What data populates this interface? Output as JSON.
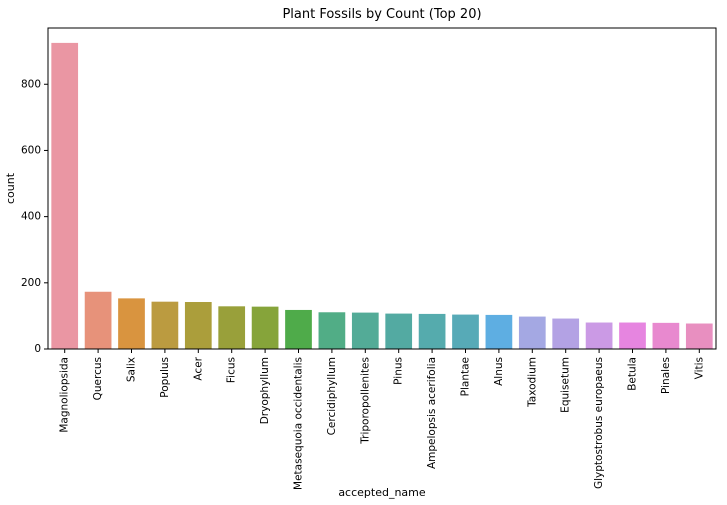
{
  "chart_data": {
    "type": "bar",
    "title": "Plant Fossils by Count (Top 20)",
    "xlabel": "accepted_name",
    "ylabel": "count",
    "ylim": [
      0,
      970
    ],
    "yticks": [
      0,
      200,
      400,
      600,
      800
    ],
    "grid": false,
    "categories": [
      "Magnoliopsida",
      "Quercus",
      "Salix",
      "Populus",
      "Acer",
      "Ficus",
      "Dryophyllum",
      "Metasequoia occidentalis",
      "Cercidiphyllum",
      "Triporopollenites",
      "Pinus",
      "Ampelopsis acerifolia",
      "Plantae",
      "Alnus",
      "Taxodium",
      "Equisetum",
      "Glyptostrobus europaeus",
      "Betula",
      "Pinales",
      "Vitis"
    ],
    "values": [
      925,
      173,
      153,
      143,
      142,
      129,
      128,
      118,
      111,
      110,
      107,
      106,
      104,
      103,
      98,
      92,
      80,
      80,
      79,
      77
    ],
    "colors": [
      "#ea96a3",
      "#e7927a",
      "#d9943f",
      "#bb9b40",
      "#ab9e3b",
      "#99a03a",
      "#86a43a",
      "#4fab4a",
      "#51ad86",
      "#53ab97",
      "#53aaa2",
      "#55abad",
      "#57aab7",
      "#5eaee2",
      "#a4a8e3",
      "#b3a2e4",
      "#cb9ae5",
      "#e685e0",
      "#e889cf",
      "#e88fc0"
    ]
  }
}
